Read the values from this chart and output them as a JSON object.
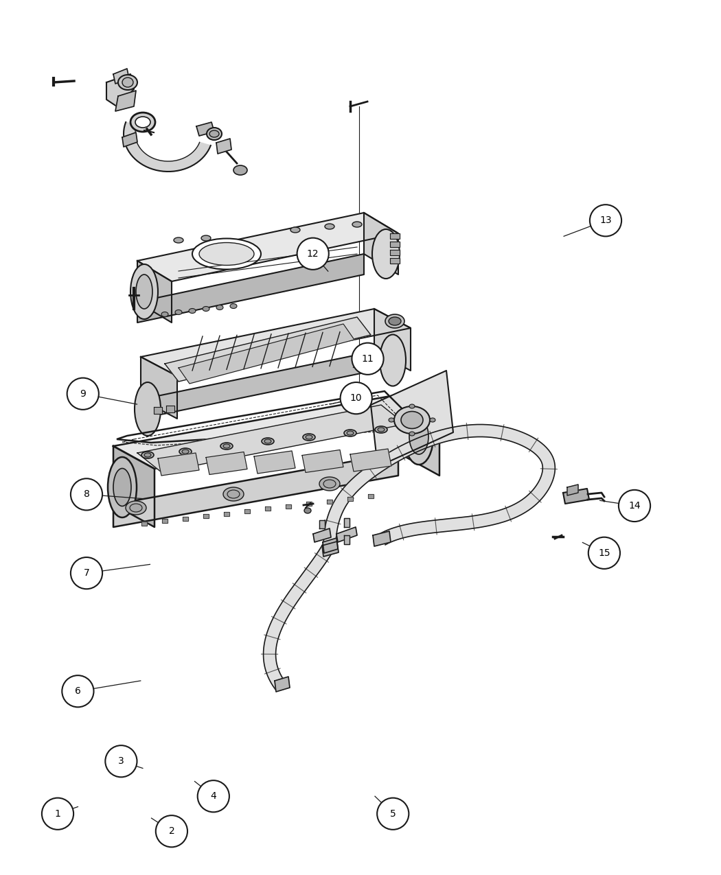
{
  "bg_color": "#ffffff",
  "lc": "#1a1a1a",
  "fill_light": "#f0f0f0",
  "fill_mid": "#d8d8d8",
  "fill_dark": "#b8b8b8",
  "callout_r": 0.022,
  "callout_fs": 10,
  "connections": [
    [
      0.08,
      0.93,
      0.108,
      0.922,
      1
    ],
    [
      0.238,
      0.95,
      0.21,
      0.935,
      2
    ],
    [
      0.168,
      0.87,
      0.198,
      0.878,
      3
    ],
    [
      0.296,
      0.91,
      0.27,
      0.893,
      4
    ],
    [
      0.545,
      0.93,
      0.52,
      0.91,
      5
    ],
    [
      0.108,
      0.79,
      0.195,
      0.778,
      6
    ],
    [
      0.12,
      0.655,
      0.208,
      0.645,
      7
    ],
    [
      0.12,
      0.565,
      0.2,
      0.57,
      8
    ],
    [
      0.115,
      0.45,
      0.19,
      0.462,
      9
    ],
    [
      0.494,
      0.455,
      0.458,
      0.462,
      10
    ],
    [
      0.51,
      0.41,
      0.49,
      0.42,
      11
    ],
    [
      0.434,
      0.29,
      0.455,
      0.31,
      12
    ],
    [
      0.84,
      0.252,
      0.782,
      0.27,
      13
    ],
    [
      0.88,
      0.578,
      0.832,
      0.572,
      14
    ],
    [
      0.838,
      0.632,
      0.808,
      0.62,
      15
    ]
  ]
}
